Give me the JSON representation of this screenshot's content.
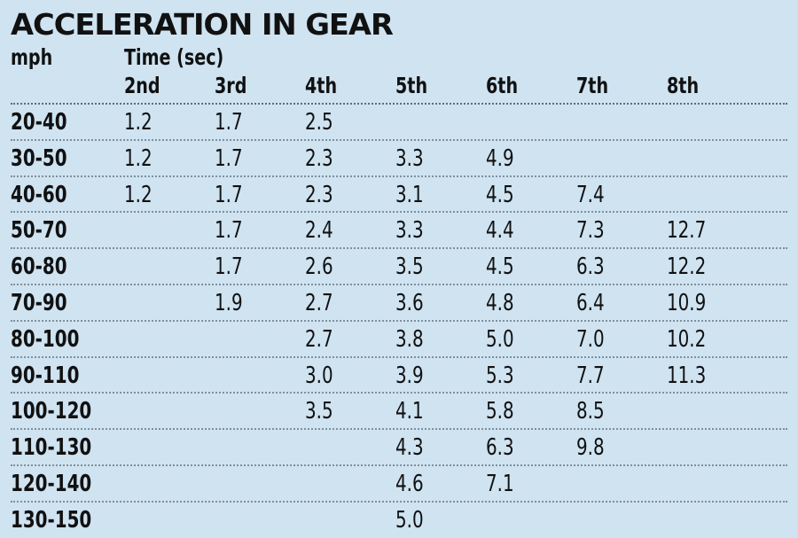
{
  "title": "ACCELERATION IN GEAR",
  "header": {
    "mph_label": "mph",
    "time_label": "Time (sec)",
    "gears": [
      "2nd",
      "3rd",
      "4th",
      "5th",
      "6th",
      "7th",
      "8th"
    ]
  },
  "rows": [
    {
      "range": "20-40",
      "values": [
        "1.2",
        "1.7",
        "2.5",
        "",
        "",
        "",
        ""
      ]
    },
    {
      "range": "30-50",
      "values": [
        "1.2",
        "1.7",
        "2.3",
        "3.3",
        "4.9",
        "",
        ""
      ]
    },
    {
      "range": "40-60",
      "values": [
        "1.2",
        "1.7",
        "2.3",
        "3.1",
        "4.5",
        "7.4",
        ""
      ]
    },
    {
      "range": "50-70",
      "values": [
        "",
        "1.7",
        "2.4",
        "3.3",
        "4.4",
        "7.3",
        "12.7"
      ]
    },
    {
      "range": "60-80",
      "values": [
        "",
        "1.7",
        "2.6",
        "3.5",
        "4.5",
        "6.3",
        "12.2"
      ]
    },
    {
      "range": "70-90",
      "values": [
        "",
        "1.9",
        "2.7",
        "3.6",
        "4.8",
        "6.4",
        "10.9"
      ]
    },
    {
      "range": "80-100",
      "values": [
        "",
        "",
        "2.7",
        "3.8",
        "5.0",
        "7.0",
        "10.2"
      ]
    },
    {
      "range": "90-110",
      "values": [
        "",
        "",
        "3.0",
        "3.9",
        "5.3",
        "7.7",
        "11.3"
      ]
    },
    {
      "range": "100-120",
      "values": [
        "",
        "",
        "3.5",
        "4.1",
        "5.8",
        "8.5",
        ""
      ]
    },
    {
      "range": "110-130",
      "values": [
        "",
        "",
        "",
        "4.3",
        "6.3",
        "9.8",
        ""
      ]
    },
    {
      "range": "120-140",
      "values": [
        "",
        "",
        "",
        "4.6",
        "7.1",
        "",
        ""
      ]
    },
    {
      "range": "130-150",
      "values": [
        "",
        "",
        "",
        "5.0",
        "",
        "",
        ""
      ]
    }
  ]
}
